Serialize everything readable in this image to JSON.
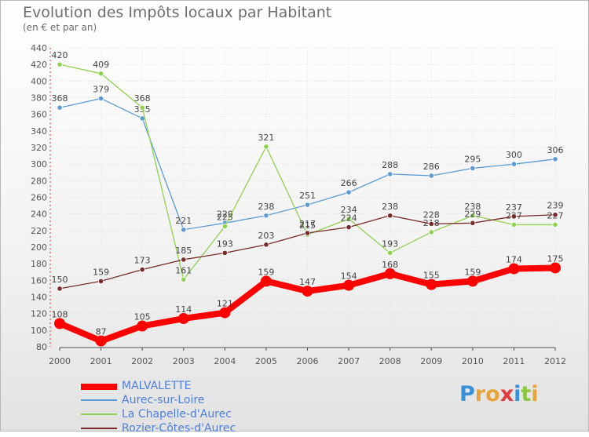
{
  "chart_data": {
    "type": "line",
    "title": "Evolution des Impôts locaux par Habitant",
    "subtitle": "(en € et par an)",
    "xlabel": "",
    "ylabel": "",
    "x": [
      "2000",
      "2001",
      "2002",
      "2003",
      "2004",
      "2005",
      "2006",
      "2007",
      "2008",
      "2009",
      "2010",
      "2011",
      "2012"
    ],
    "ylim": [
      80,
      440
    ],
    "y_ticks": [
      80,
      100,
      120,
      140,
      160,
      180,
      200,
      220,
      240,
      260,
      280,
      300,
      320,
      340,
      360,
      380,
      400,
      420,
      440
    ],
    "grid": "horizontal",
    "legend_position": "bottom-left",
    "series": [
      {
        "name": "MALVALETTE",
        "color": "#ff0000",
        "values": [
          108,
          87,
          105,
          114,
          121,
          159,
          147,
          154,
          168,
          155,
          159,
          174,
          175
        ]
      },
      {
        "name": "Aurec-sur-Loire",
        "color": "#5b9bd5",
        "values": [
          368,
          379,
          355,
          221,
          229,
          238,
          251,
          266,
          288,
          286,
          295,
          300,
          306
        ]
      },
      {
        "name": "La Chapelle-d'Aurec",
        "color": "#8fd14f",
        "values": [
          420,
          409,
          368,
          161,
          225,
          321,
          215,
          234,
          193,
          218,
          238,
          227,
          227
        ]
      },
      {
        "name": "Rozier-Côtes-d'Aurec",
        "color": "#7a2a2a",
        "values": [
          150,
          159,
          173,
          185,
          193,
          203,
          217,
          224,
          238,
          228,
          229,
          237,
          239
        ]
      }
    ]
  },
  "brand": {
    "letters": [
      "P",
      "r",
      "o",
      "x",
      "i",
      "t",
      "i"
    ],
    "colors": [
      "#3a8fd9",
      "#e8a33a",
      "#e8a33a",
      "#e23b3b",
      "#3a8fd9",
      "#8cc63f",
      "#e8a33a"
    ]
  }
}
